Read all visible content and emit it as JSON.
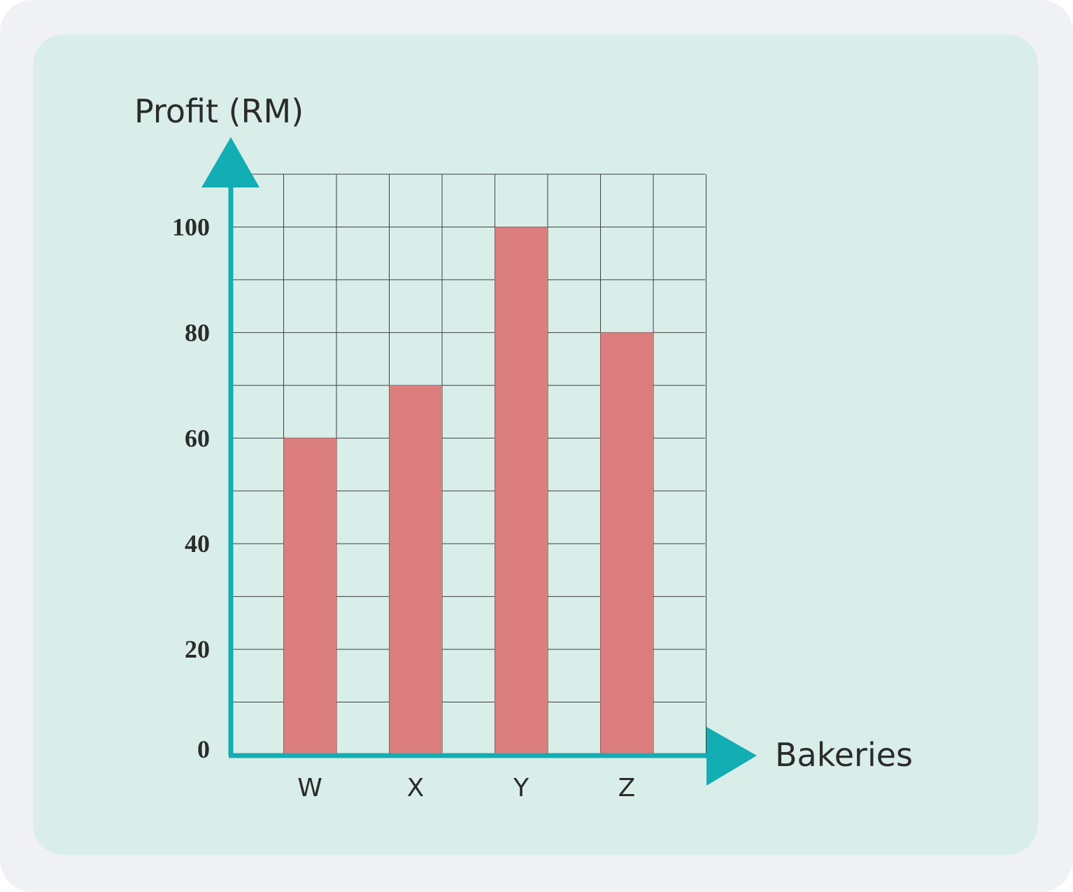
{
  "colors": {
    "frame": "#f0f1f5",
    "panel": "#d9eee9",
    "bar": "#dc7e7e",
    "axis": "#12aeb4",
    "grid": "#3a3f3f",
    "text": "#2b2b2b"
  },
  "chart_data": {
    "type": "bar",
    "categories": [
      "W",
      "X",
      "Y",
      "Z"
    ],
    "values": [
      60,
      70,
      100,
      80
    ],
    "title": "",
    "xlabel": "Bakeries",
    "ylabel": "Profit (RM)",
    "ylim": [
      0,
      110
    ],
    "yticks": [
      "0",
      "20",
      "40",
      "60",
      "80",
      "100"
    ],
    "grid": true
  }
}
